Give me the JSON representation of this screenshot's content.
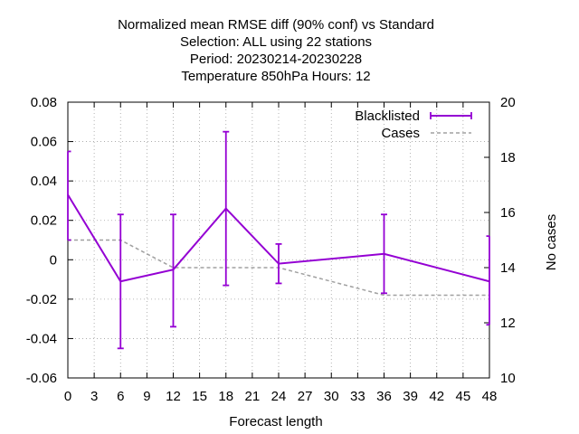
{
  "chart_data": {
    "type": "line",
    "title_lines": [
      "Normalized mean RMSE diff (90% conf) vs Standard",
      "Selection: ALL using    22 stations",
      "Period: 20230214-20230228",
      "Temperature 850hPa   Hours:  12"
    ],
    "xlabel": "Forecast length",
    "ylabel": "",
    "y2label": "No cases",
    "xlim": [
      0,
      48
    ],
    "ylim": [
      -0.06,
      0.08
    ],
    "y2lim": [
      10,
      20
    ],
    "x_ticks": [
      0,
      3,
      6,
      9,
      12,
      15,
      18,
      21,
      24,
      27,
      30,
      33,
      36,
      39,
      42,
      45,
      48
    ],
    "y_ticks": [
      -0.06,
      -0.04,
      -0.02,
      0,
      0.02,
      0.04,
      0.06,
      0.08
    ],
    "y_tick_labels": [
      "-0.06",
      "-0.04",
      "-0.02",
      "0",
      "0.02",
      "0.04",
      "0.06",
      "0.08"
    ],
    "y2_ticks": [
      10,
      12,
      14,
      16,
      18,
      20
    ],
    "grid": true,
    "legend_position": "top-right",
    "series": [
      {
        "name": "Blacklisted",
        "axis": "y",
        "color": "#9400d3",
        "x": [
          0,
          6,
          12,
          18,
          24,
          36,
          48
        ],
        "y": [
          0.033,
          -0.011,
          -0.005,
          0.026,
          -0.002,
          0.003,
          -0.011
        ],
        "err_low": [
          0.01,
          -0.045,
          -0.034,
          -0.013,
          -0.012,
          -0.017,
          -0.033
        ],
        "err_high": [
          0.055,
          0.023,
          0.023,
          0.065,
          0.008,
          0.023,
          0.012
        ]
      },
      {
        "name": "Cases",
        "axis": "y2",
        "color": "#a0a0a0",
        "x": [
          0,
          6,
          12,
          18,
          24,
          36,
          48
        ],
        "y": [
          15,
          15,
          14,
          14,
          14,
          13,
          13
        ]
      }
    ]
  }
}
